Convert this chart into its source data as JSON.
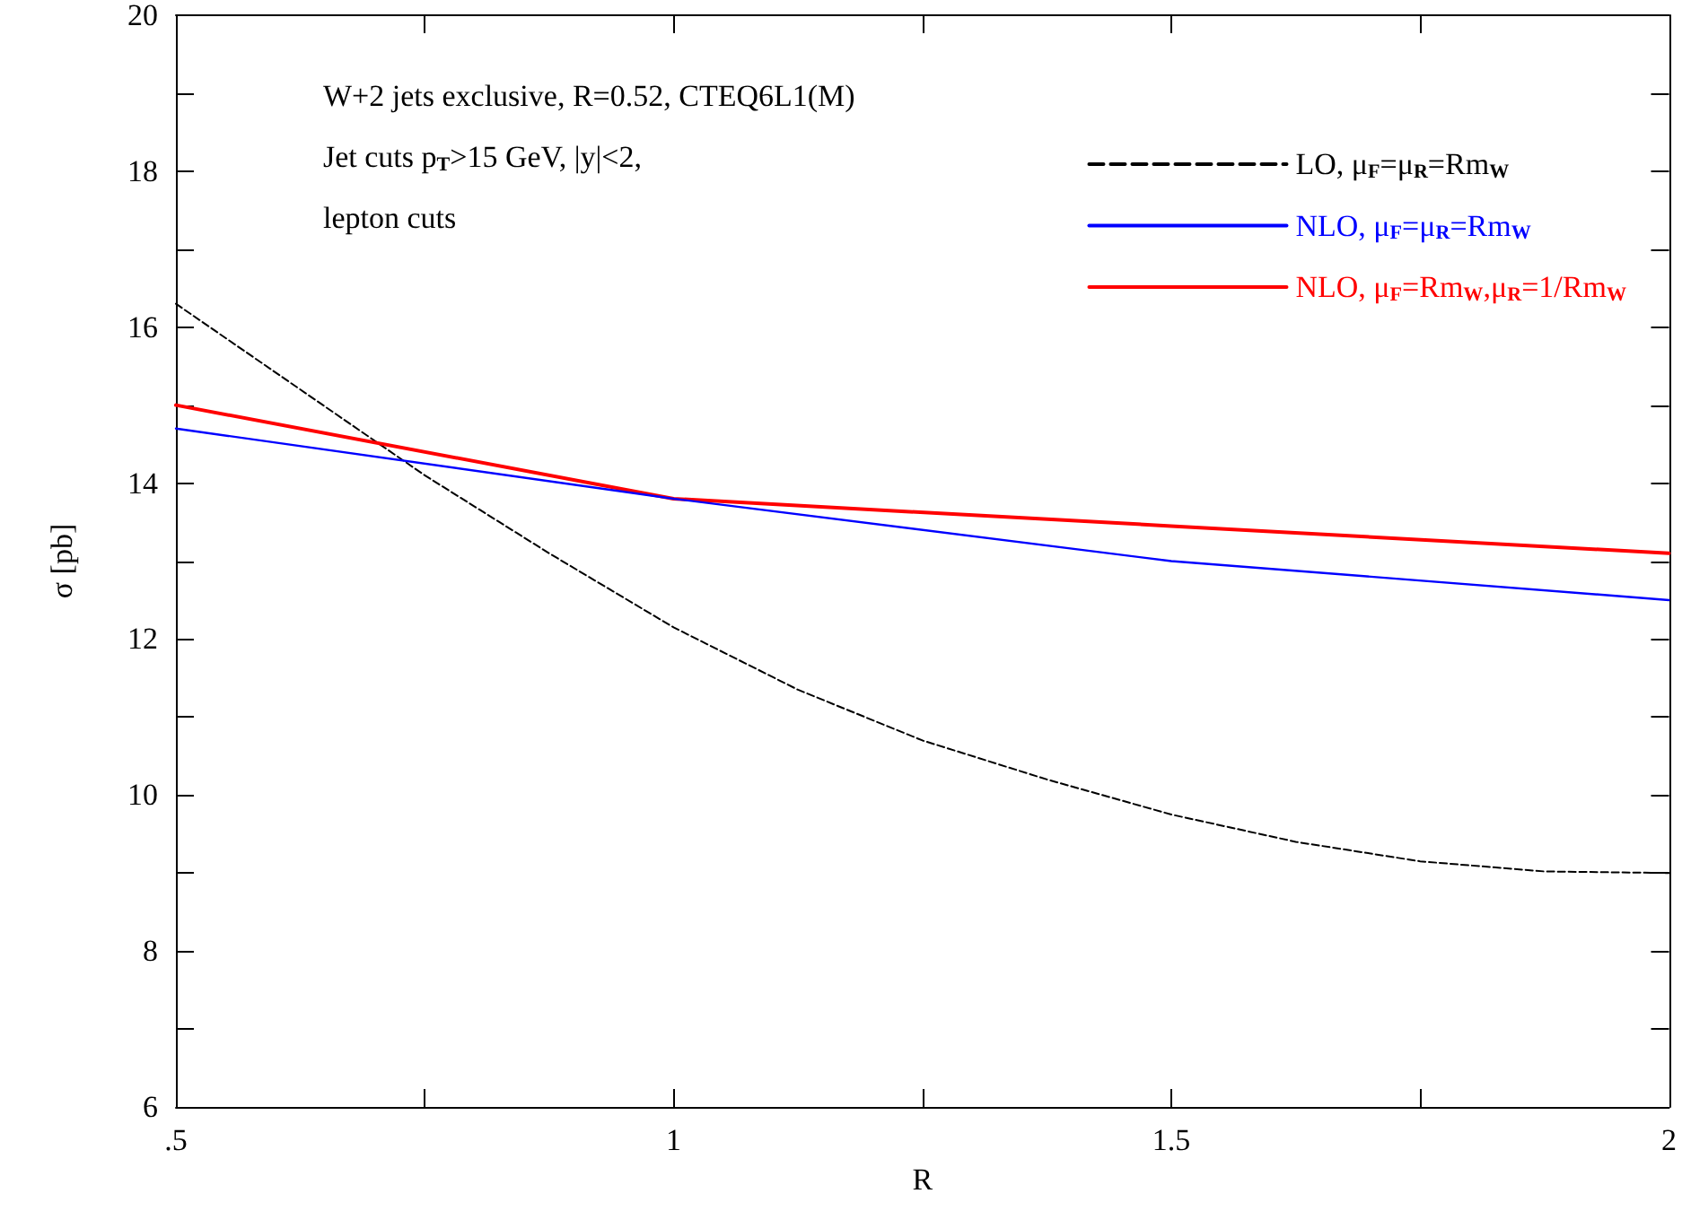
{
  "chart_data": {
    "type": "line",
    "xlabel": "R",
    "ylabel": "σ [pb]",
    "annotations": [
      "W+2 jets exclusive, R=0.52, CTEQ6L1(M)",
      "Jet cuts p$_{T}$>15 GeV, |y|<2,",
      "lepton cuts"
    ],
    "x": [
      0.5,
      0.625,
      0.75,
      0.875,
      1.0,
      1.125,
      1.25,
      1.375,
      1.5,
      1.625,
      1.75,
      1.875,
      2.0
    ],
    "series": [
      {
        "name": "LO, μ$_{F}$=μ$_{R}$=Rm$_{W}$",
        "color": "#000000",
        "line_style": "dashed",
        "values": [
          16.3,
          15.2,
          14.1,
          13.1,
          12.15,
          11.35,
          10.7,
          10.2,
          9.75,
          9.4,
          9.15,
          9.02,
          9.0
        ]
      },
      {
        "name": "NLO, μ$_{F}$=μ$_{R}$=Rm$_{W}$",
        "color": "#0000ff",
        "x": [
          0.5,
          1.0,
          1.5,
          2.0
        ],
        "values": [
          14.7,
          13.8,
          13.0,
          12.5
        ]
      },
      {
        "name": "NLO, μ$_{F}$=Rm$_{W}$,μ$_{R}$=1/Rm$_{W}$",
        "color": "#ff0000",
        "x": [
          0.5,
          1.0,
          1.5,
          2.0
        ],
        "values": [
          15.0,
          13.8,
          13.45,
          13.1
        ]
      }
    ],
    "xlim": [
      0.5,
      2
    ],
    "xticks": [
      {
        "value": 0.5,
        "label": ".5"
      },
      {
        "value": 0.75,
        "label": null
      },
      1,
      {
        "value": 1.25,
        "label": null
      },
      1.5,
      {
        "value": 1.75,
        "label": null
      },
      2
    ],
    "ylim": [
      6,
      20
    ],
    "yticks": [
      6,
      {
        "value": 7,
        "label": null
      },
      8,
      {
        "value": 9,
        "label": null
      },
      10,
      {
        "value": 11,
        "label": null
      },
      12,
      {
        "value": 13,
        "label": null
      },
      14,
      {
        "value": 15,
        "label": null
      },
      16,
      {
        "value": 17,
        "label": null
      },
      18,
      {
        "value": 19,
        "label": null
      },
      20
    ],
    "grid": false,
    "legend": "top right",
    "marker": "none",
    "line_style": "solid"
  }
}
